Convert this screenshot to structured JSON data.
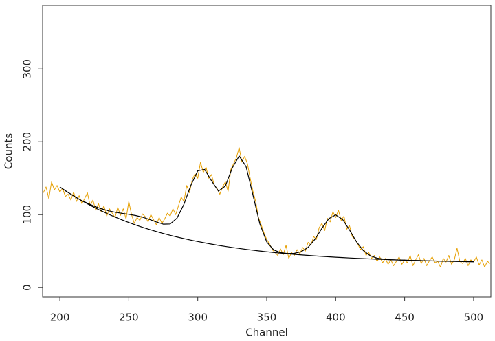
{
  "chart_data": {
    "type": "line",
    "x_label": "Channel",
    "y_label": "Counts",
    "xlim": [
      187.5,
      512.5
    ],
    "ylim": [
      -13,
      387
    ],
    "xticks": [
      200,
      250,
      300,
      350,
      400,
      450,
      500
    ],
    "yticks": [
      0,
      100,
      200,
      300
    ],
    "series": [
      {
        "color": "#e69f00",
        "x": [
          188,
          190,
          192,
          194,
          196,
          198,
          200,
          202,
          204,
          206,
          208,
          210,
          212,
          214,
          216,
          218,
          220,
          222,
          224,
          226,
          228,
          230,
          232,
          234,
          236,
          238,
          240,
          242,
          244,
          246,
          248,
          250,
          252,
          254,
          256,
          258,
          260,
          262,
          264,
          266,
          268,
          270,
          272,
          274,
          276,
          278,
          280,
          282,
          284,
          286,
          288,
          290,
          292,
          294,
          296,
          298,
          300,
          302,
          304,
          306,
          308,
          310,
          312,
          314,
          316,
          318,
          320,
          322,
          324,
          326,
          328,
          330,
          332,
          334,
          336,
          338,
          340,
          342,
          344,
          346,
          348,
          350,
          352,
          354,
          356,
          358,
          360,
          362,
          364,
          366,
          368,
          370,
          372,
          374,
          376,
          378,
          380,
          382,
          384,
          386,
          388,
          390,
          392,
          394,
          396,
          398,
          400,
          402,
          404,
          406,
          408,
          410,
          412,
          414,
          416,
          418,
          420,
          422,
          424,
          426,
          428,
          430,
          432,
          434,
          436,
          438,
          440,
          442,
          444,
          446,
          448,
          450,
          452,
          454,
          456,
          458,
          460,
          462,
          464,
          466,
          468,
          470,
          472,
          474,
          476,
          478,
          480,
          482,
          484,
          486,
          488,
          490,
          492,
          494,
          496,
          498,
          500,
          502,
          504,
          506,
          508,
          510,
          512
        ],
        "values": [
          130,
          138,
          122,
          145,
          134,
          140,
          131,
          136,
          125,
          128,
          120,
          131,
          118,
          126,
          115,
          122,
          130,
          112,
          120,
          106,
          115,
          104,
          112,
          98,
          108,
          102,
          96,
          110,
          99,
          108,
          94,
          118,
          100,
          88,
          96,
          92,
          101,
          97,
          90,
          100,
          93,
          86,
          96,
          88,
          94,
          102,
          98,
          108,
          100,
          112,
          124,
          118,
          140,
          130,
          148,
          156,
          150,
          172,
          158,
          165,
          150,
          155,
          140,
          136,
          128,
          138,
          145,
          132,
          162,
          170,
          178,
          192,
          172,
          180,
          170,
          150,
          132,
          118,
          96,
          86,
          75,
          66,
          60,
          52,
          48,
          44,
          53,
          45,
          58,
          40,
          48,
          44,
          52,
          46,
          55,
          50,
          62,
          58,
          70,
          66,
          82,
          88,
          78,
          95,
          90,
          104,
          96,
          106,
          92,
          98,
          80,
          85,
          70,
          66,
          60,
          52,
          56,
          44,
          48,
          40,
          44,
          36,
          42,
          34,
          40,
          32,
          38,
          30,
          36,
          42,
          32,
          38,
          34,
          44,
          30,
          38,
          45,
          33,
          40,
          30,
          37,
          42,
          34,
          36,
          28,
          40,
          35,
          44,
          32,
          38,
          54,
          36,
          33,
          40,
          30,
          38,
          35,
          42,
          31,
          38,
          28,
          36,
          33
        ]
      },
      {
        "color": "#000000",
        "x": [
          200,
          205,
          210,
          215,
          220,
          225,
          230,
          235,
          240,
          245,
          250,
          255,
          260,
          265,
          270,
          275,
          280,
          285,
          290,
          295,
          300,
          305,
          310,
          315,
          320,
          325,
          330,
          335,
          340,
          345,
          350,
          355,
          360,
          365,
          370,
          375,
          380,
          385,
          390,
          395,
          400,
          405,
          410,
          415,
          420,
          425,
          430,
          435,
          440,
          445,
          450,
          455,
          460,
          465,
          470,
          475,
          480,
          485,
          490,
          495,
          500
        ],
        "values": [
          138,
          131.6,
          125.7,
          120.0,
          114.8,
          109.8,
          105.2,
          100.8,
          96.7,
          92.8,
          89.2,
          85.8,
          82.6,
          79.6,
          76.8,
          74.1,
          71.6,
          69.3,
          67.1,
          65.0,
          63.1,
          61.3,
          59.5,
          57.9,
          56.4,
          55.0,
          53.7,
          52.4,
          51.2,
          50.1,
          49.1,
          48.1,
          47.2,
          46.3,
          45.5,
          44.8,
          44.1,
          43.4,
          42.8,
          42.2,
          41.6,
          41.1,
          40.6,
          40.1,
          39.7,
          39.3,
          38.9,
          38.6,
          38.2,
          37.9,
          37.6,
          37.3,
          37.1,
          36.8,
          36.6,
          36.4,
          36.2,
          36.0,
          35.8,
          35.6,
          35.5
        ]
      },
      {
        "color": "#000000",
        "x": [
          200,
          205,
          210,
          215,
          220,
          225,
          230,
          235,
          240,
          245,
          250,
          255,
          260,
          265,
          270,
          275,
          280,
          285,
          290,
          295,
          300,
          305,
          310,
          315,
          320,
          325,
          330,
          335,
          340,
          345,
          350,
          355,
          360,
          365,
          370,
          375,
          380,
          385,
          390,
          395,
          400,
          405,
          410,
          415,
          420,
          425,
          430,
          435,
          440,
          445,
          450,
          455,
          460,
          465,
          470,
          475,
          480,
          485,
          490,
          495,
          500
        ],
        "values": [
          138,
          131.6,
          125.7,
          120.0,
          115.7,
          111.5,
          108.1,
          105.3,
          103.3,
          101.8,
          100.4,
          98.8,
          96.5,
          93.4,
          89.9,
          86.9,
          87.2,
          95.3,
          114.3,
          140.2,
          160.2,
          162.0,
          146.4,
          132.3,
          139.2,
          164.0,
          180.5,
          166.2,
          127.0,
          87.4,
          62.6,
          51.7,
          47.9,
          46.7,
          46.9,
          49.2,
          55.2,
          66.3,
          81.2,
          94.5,
          99.6,
          93.4,
          79.0,
          63.0,
          50.8,
          43.7,
          40.3,
          39.0,
          38.2,
          37.9,
          37.6,
          37.3,
          37.1,
          36.8,
          36.6,
          36.4,
          36.2,
          36.0,
          35.8,
          35.6,
          35.5
        ]
      }
    ]
  }
}
